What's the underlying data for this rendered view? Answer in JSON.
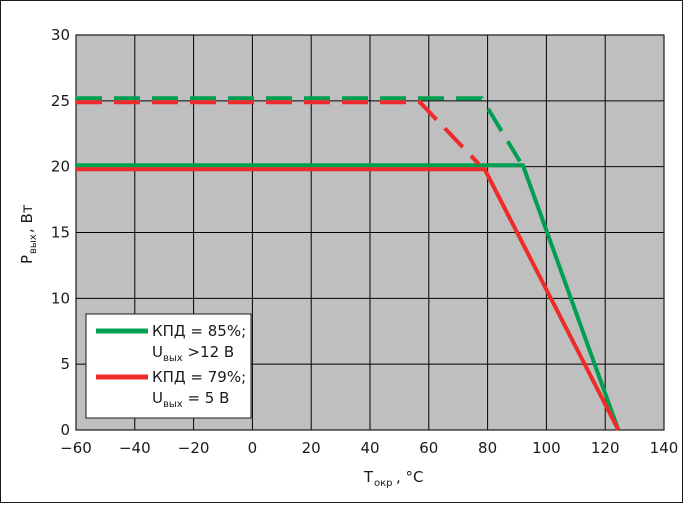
{
  "chart_data": {
    "type": "line",
    "xlabel": "T",
    "xlabel_sub": "окр",
    "xlabel_unit": ", °C",
    "ylabel": "P",
    "ylabel_sub": "вых",
    "ylabel_unit": ", Вт",
    "xlim": [
      -60,
      140
    ],
    "ylim": [
      0,
      30
    ],
    "x_ticks": [
      -60,
      -40,
      -20,
      0,
      20,
      40,
      60,
      80,
      100,
      120,
      140
    ],
    "y_ticks": [
      0,
      5,
      10,
      15,
      20,
      25,
      30
    ],
    "x_tick_labels": [
      "−60",
      "−40",
      "−20",
      "0",
      "20",
      "40",
      "60",
      "80",
      "100",
      "120",
      "140"
    ],
    "y_tick_labels": [
      "0",
      "5",
      "10",
      "15",
      "20",
      "25",
      "30"
    ],
    "grid": true,
    "legend_position": "bottom-left",
    "series": [
      {
        "color": "#00a050",
        "style": "solid",
        "points": [
          [
            -60,
            20.1
          ],
          [
            92,
            20.1
          ],
          [
            124.5,
            0
          ]
        ]
      },
      {
        "color": "#ee2a2a",
        "style": "solid",
        "points": [
          [
            -60,
            19.8
          ],
          [
            79,
            19.8
          ],
          [
            124.5,
            0
          ]
        ]
      },
      {
        "color": "#00a050",
        "style": "dashed",
        "points": [
          [
            -60,
            25.2
          ],
          [
            78,
            25.2
          ],
          [
            91,
            20.4
          ]
        ]
      },
      {
        "color": "#ee2a2a",
        "style": "dashed",
        "points": [
          [
            -60,
            24.9
          ],
          [
            57,
            24.9
          ],
          [
            77,
            20.2
          ]
        ]
      }
    ],
    "legend": [
      {
        "color": "#00a050",
        "line1": "КПД = 85%;",
        "line2_main": "U",
        "line2_sub": "вых",
        "line2_rest": " >12 В"
      },
      {
        "color": "#ee2a2a",
        "line1": "КПД = 79%;",
        "line2_main": "U",
        "line2_sub": "вых",
        "line2_rest": " = 5 В"
      }
    ],
    "colors": {
      "plot_bg": "#bfbfbf",
      "grid": "#000000",
      "frame": "#1a1a1a"
    }
  }
}
